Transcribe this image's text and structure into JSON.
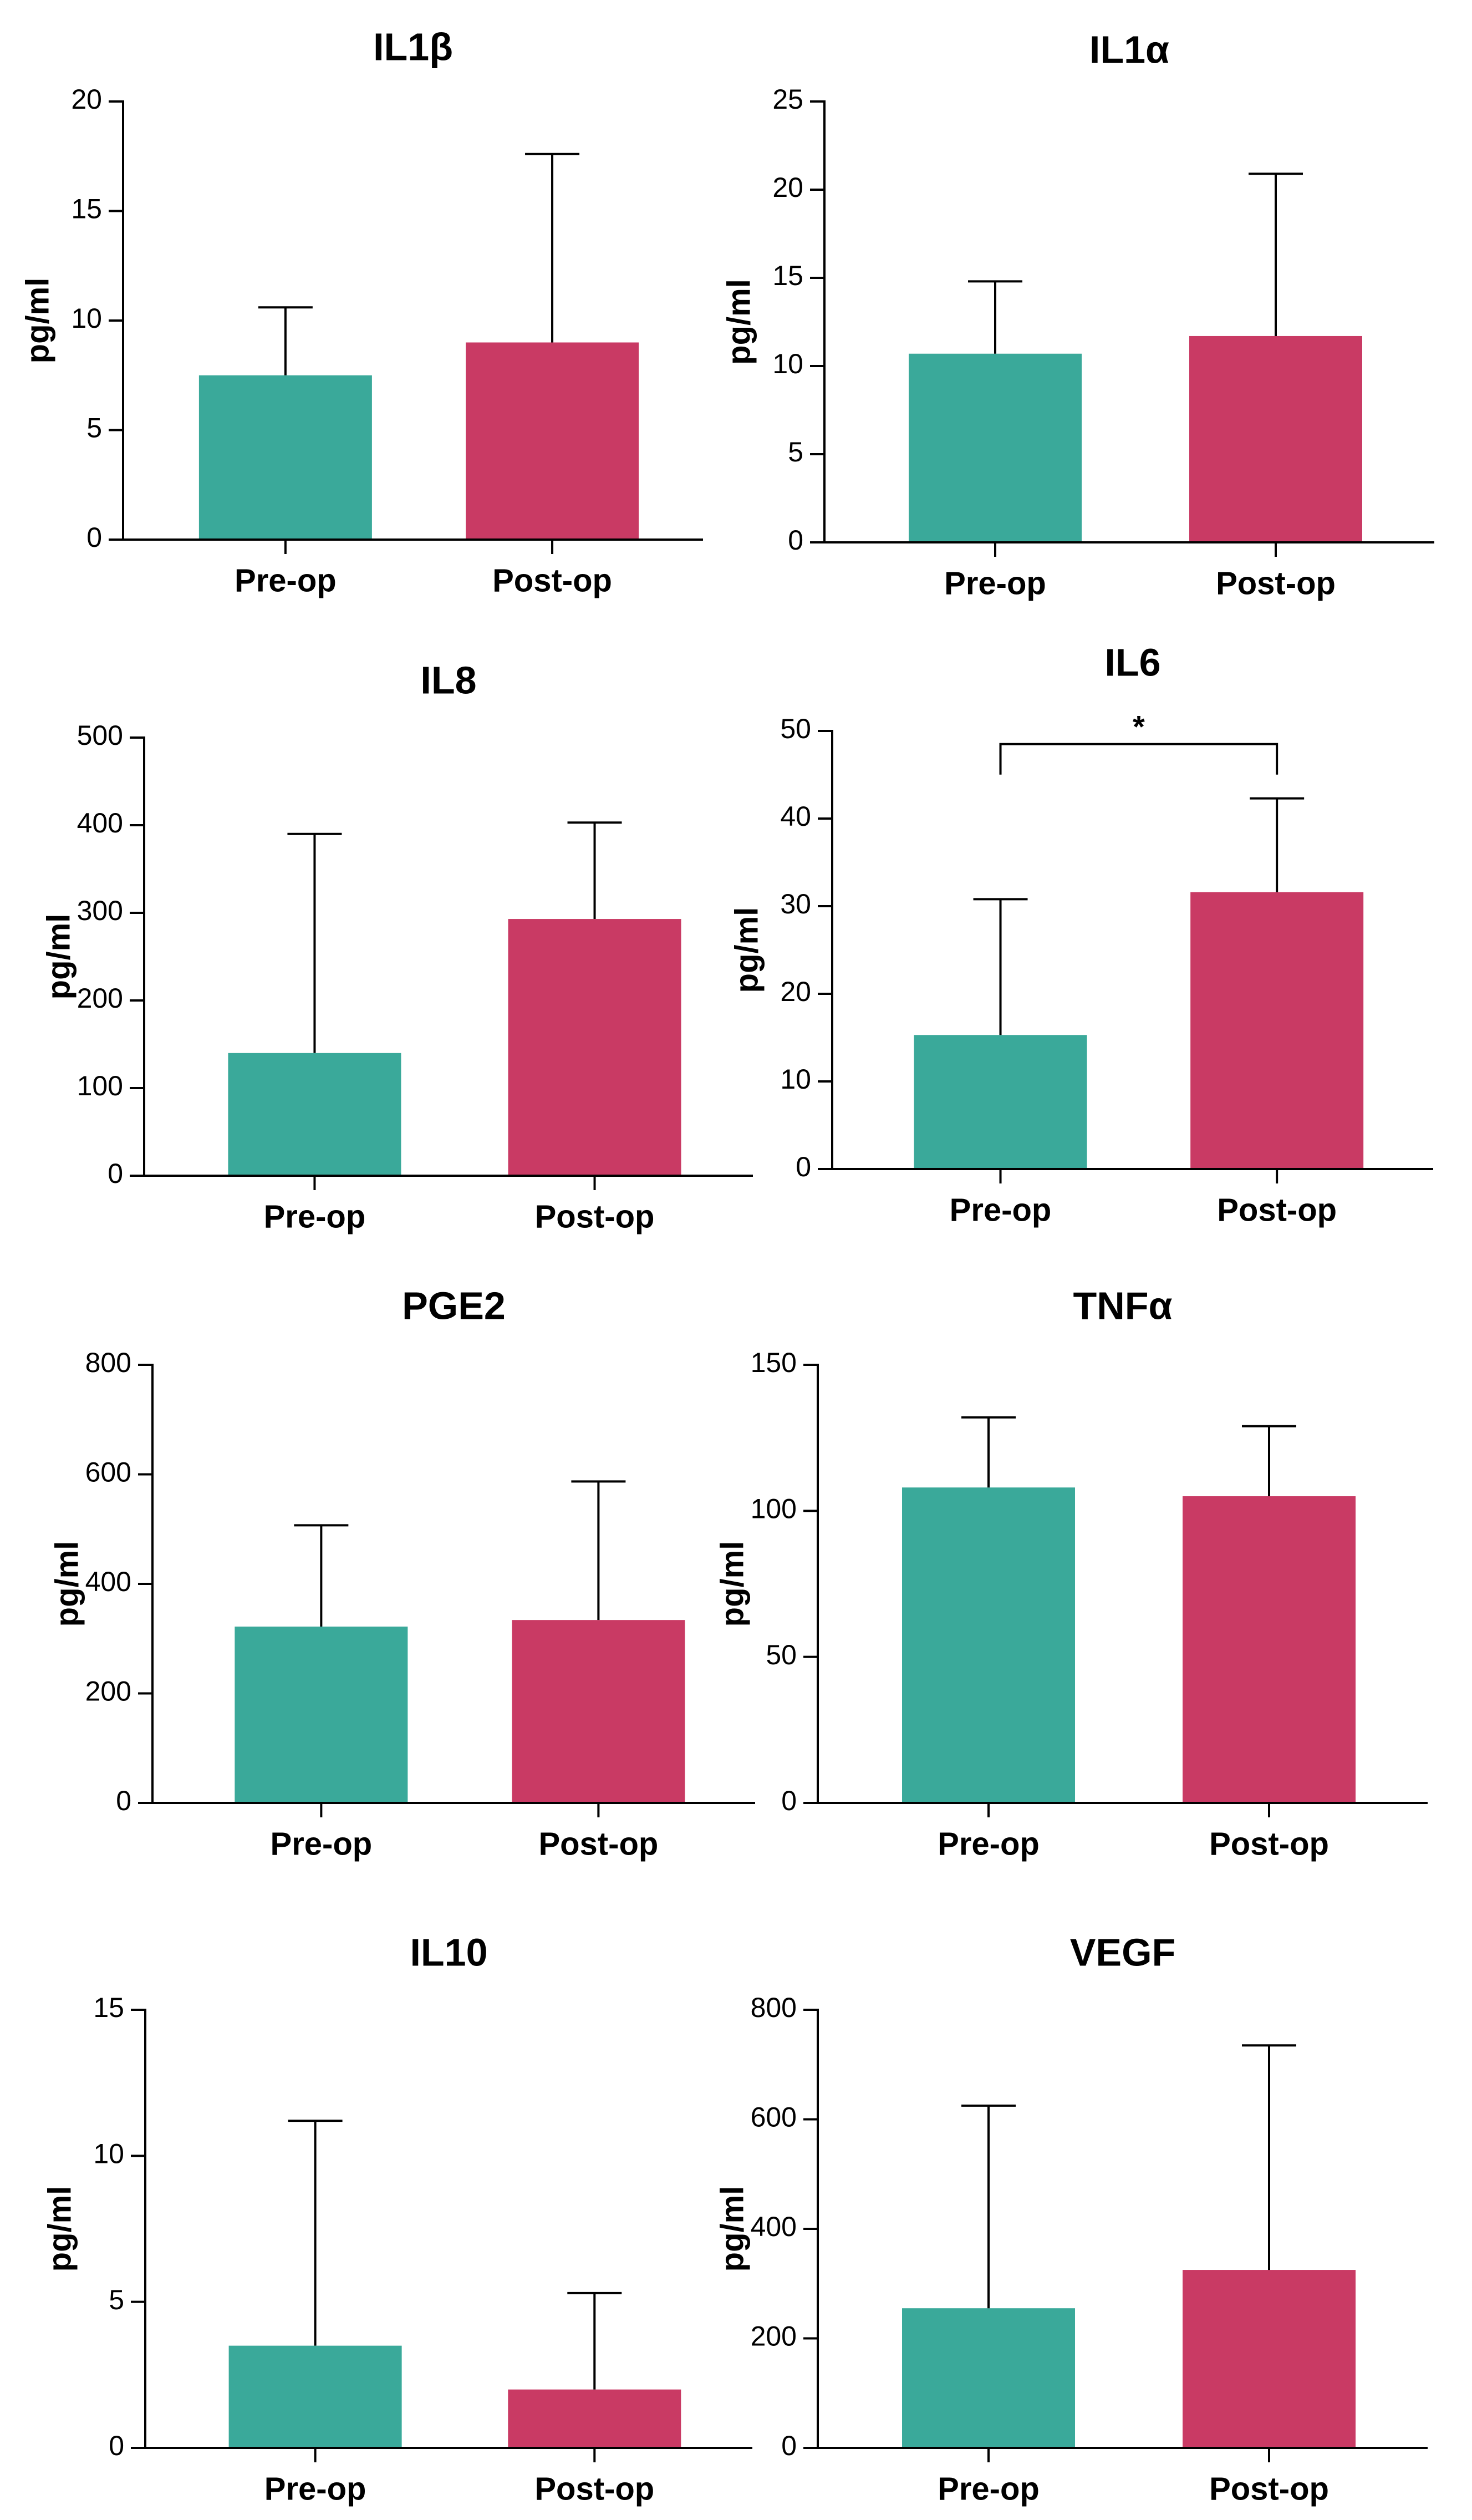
{
  "colors": {
    "pre": "#3aa99a",
    "post": "#c93a64",
    "axis": "#000000"
  },
  "chart_data": [
    {
      "type": "bar",
      "title": "IL1β",
      "ylabel": "pg/ml",
      "categories": [
        "Pre-op",
        "Post-op"
      ],
      "values": [
        7.5,
        9.0
      ],
      "errors": [
        3.1,
        8.6
      ],
      "ylim": [
        0,
        20
      ],
      "yticks": [
        0,
        5,
        10,
        15,
        20
      ],
      "ytick_labels": [
        "0",
        "5",
        "10",
        "15",
        "20"
      ]
    },
    {
      "type": "bar",
      "title": "IL1α",
      "ylabel": "pg/ml",
      "categories": [
        "Pre-op",
        "Post-op"
      ],
      "values": [
        10.7,
        11.7
      ],
      "errors": [
        4.1,
        9.2
      ],
      "ylim": [
        0,
        25
      ],
      "yticks": [
        0,
        5,
        10,
        15,
        20,
        25
      ],
      "ytick_labels": [
        "0",
        "5",
        "10",
        "15",
        "20",
        "25"
      ]
    },
    {
      "type": "bar",
      "title": "IL8",
      "ylabel": "pg/ml",
      "categories": [
        "Pre-op",
        "Post-op"
      ],
      "values": [
        140,
        293
      ],
      "errors": [
        250,
        110
      ],
      "ylim": [
        0,
        500
      ],
      "yticks": [
        0,
        100,
        200,
        300,
        400,
        500
      ],
      "ytick_labels": [
        "0",
        "100",
        "200",
        "300",
        "400",
        "500"
      ]
    },
    {
      "type": "bar",
      "title": "IL6",
      "ylabel": "pg/ml",
      "categories": [
        "Pre-op",
        "Post-op"
      ],
      "values": [
        15.3,
        31.6
      ],
      "errors": [
        15.5,
        10.7
      ],
      "ylim": [
        0,
        50
      ],
      "yticks": [
        0,
        10,
        20,
        30,
        40,
        50
      ],
      "ytick_labels": [
        "0",
        "10",
        "20",
        "30",
        "40",
        "50"
      ],
      "significance": {
        "label": "*",
        "level": 48.5
      }
    },
    {
      "type": "bar",
      "title": "PGE2",
      "ylabel": "pg/ml",
      "categories": [
        "Pre-op",
        "Post-op"
      ],
      "values": [
        322,
        334
      ],
      "errors": [
        185,
        253
      ],
      "ylim": [
        0,
        800
      ],
      "yticks": [
        0,
        200,
        400,
        600,
        800
      ],
      "ytick_labels": [
        "0",
        "200",
        "400",
        "600",
        "800"
      ]
    },
    {
      "type": "bar",
      "title": "TNFα",
      "ylabel": "pg/ml",
      "categories": [
        "Pre-op",
        "Post-op"
      ],
      "values": [
        108,
        105
      ],
      "errors": [
        24,
        24
      ],
      "ylim": [
        0,
        150
      ],
      "yticks": [
        0,
        50,
        100,
        150
      ],
      "ytick_labels": [
        "0",
        "50",
        "100",
        "150"
      ]
    },
    {
      "type": "bar",
      "title": "IL10",
      "ylabel": "pg/ml",
      "categories": [
        "Pre-op",
        "Post-op"
      ],
      "values": [
        3.5,
        2.0
      ],
      "errors": [
        7.7,
        3.3
      ],
      "ylim": [
        0,
        15
      ],
      "yticks": [
        0,
        5,
        10,
        15
      ],
      "ytick_labels": [
        "0",
        "5",
        "10",
        "15"
      ]
    },
    {
      "type": "bar",
      "title": "VEGF",
      "ylabel": "pg/ml",
      "categories": [
        "Pre-op",
        "Post-op"
      ],
      "values": [
        255,
        325
      ],
      "errors": [
        370,
        410
      ],
      "ylim": [
        0,
        800
      ],
      "yticks": [
        0,
        200,
        400,
        600,
        800
      ],
      "ytick_labels": [
        "0",
        "200",
        "400",
        "600",
        "800"
      ]
    }
  ]
}
